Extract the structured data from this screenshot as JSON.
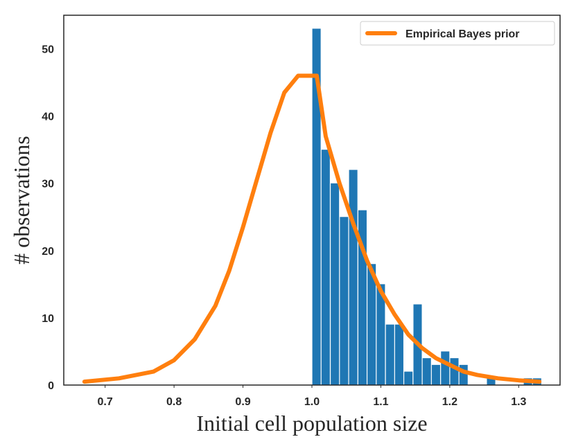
{
  "chart_data": {
    "type": "bar",
    "title": "",
    "xlabel": "Initial cell population size",
    "ylabel": "# observations",
    "xlim": [
      0.64,
      1.36
    ],
    "ylim": [
      0,
      55
    ],
    "grid": false,
    "x_ticks": [
      0.7,
      0.8,
      0.9,
      1.0,
      1.1,
      1.2,
      1.3
    ],
    "x_tick_labels": [
      "0.7",
      "0.8",
      "0.9",
      "1.0",
      "1.1",
      "1.2",
      "1.3"
    ],
    "y_ticks": [
      0,
      10,
      20,
      30,
      40,
      50
    ],
    "y_tick_labels": [
      "0",
      "10",
      "20",
      "30",
      "40",
      "50"
    ],
    "histogram": {
      "name": "# observations",
      "color": "#1f77b4",
      "bin_width": 0.0133,
      "bins": [
        {
          "x": 1.0,
          "value": 53
        },
        {
          "x": 1.0133,
          "value": 35
        },
        {
          "x": 1.0267,
          "value": 30
        },
        {
          "x": 1.04,
          "value": 25
        },
        {
          "x": 1.0533,
          "value": 32
        },
        {
          "x": 1.0667,
          "value": 26
        },
        {
          "x": 1.08,
          "value": 18
        },
        {
          "x": 1.0933,
          "value": 15
        },
        {
          "x": 1.1067,
          "value": 9
        },
        {
          "x": 1.12,
          "value": 9
        },
        {
          "x": 1.1333,
          "value": 2
        },
        {
          "x": 1.1467,
          "value": 12
        },
        {
          "x": 1.16,
          "value": 4
        },
        {
          "x": 1.1733,
          "value": 3
        },
        {
          "x": 1.1867,
          "value": 5
        },
        {
          "x": 1.2,
          "value": 4
        },
        {
          "x": 1.2133,
          "value": 3
        },
        {
          "x": 1.2533,
          "value": 1
        },
        {
          "x": 1.3067,
          "value": 1
        },
        {
          "x": 1.32,
          "value": 1
        }
      ]
    },
    "series": [
      {
        "name": "Empirical Bayes prior",
        "type": "line",
        "color": "#ff7f0e",
        "x": [
          0.67,
          0.72,
          0.77,
          0.8,
          0.83,
          0.86,
          0.88,
          0.9,
          0.92,
          0.94,
          0.96,
          0.98,
          0.993,
          1.007,
          1.02,
          1.04,
          1.06,
          1.08,
          1.1,
          1.12,
          1.14,
          1.16,
          1.18,
          1.2,
          1.22,
          1.24,
          1.27,
          1.3,
          1.33
        ],
        "y": [
          0.5,
          1.0,
          2.0,
          3.7,
          6.8,
          11.8,
          17.0,
          23.5,
          30.5,
          37.5,
          43.5,
          46.0,
          46.0,
          46.0,
          37.0,
          30.0,
          24.0,
          18.5,
          14.0,
          10.5,
          7.5,
          5.5,
          4.0,
          3.0,
          2.0,
          1.5,
          1.0,
          0.7,
          0.5
        ]
      }
    ],
    "legend": {
      "position": "top-right",
      "entries": [
        "Empirical Bayes prior"
      ]
    }
  }
}
